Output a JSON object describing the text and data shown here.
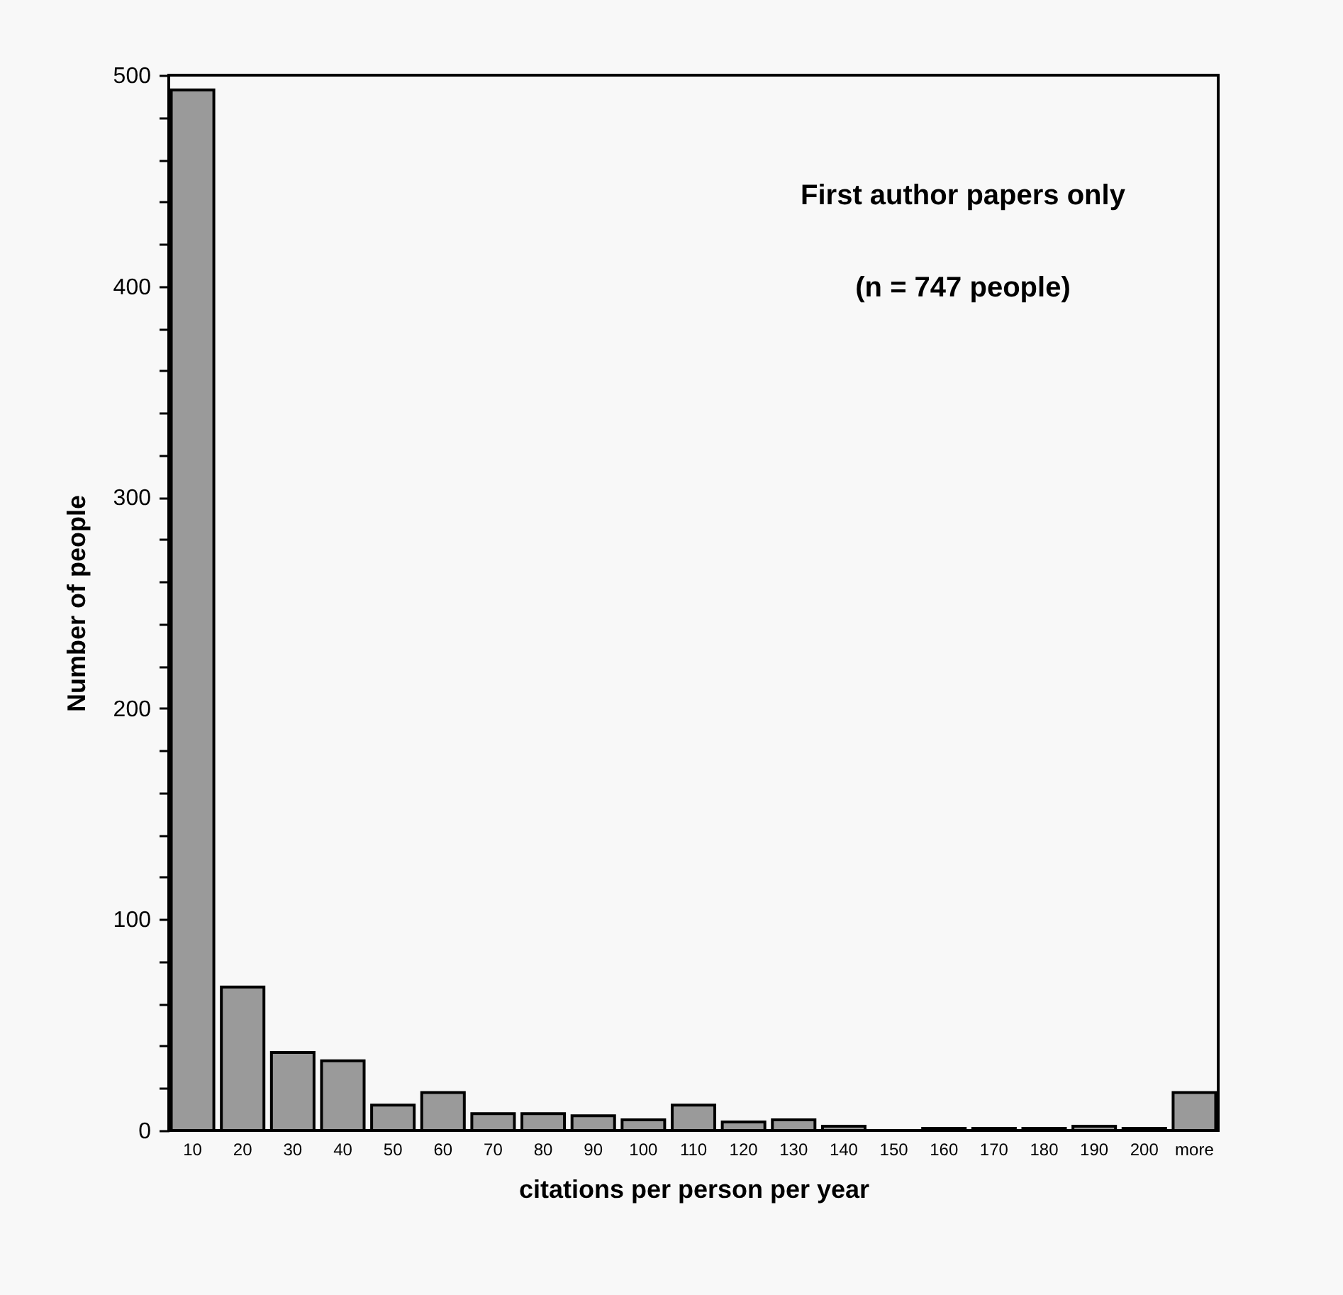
{
  "chart_data": {
    "type": "bar",
    "xlabel": "citations per person per year",
    "ylabel": "Number of people",
    "annotations": [
      "First author papers only",
      "(n = 747 people)"
    ],
    "categories": [
      "10",
      "20",
      "30",
      "40",
      "50",
      "60",
      "70",
      "80",
      "90",
      "100",
      "110",
      "120",
      "130",
      "140",
      "150",
      "160",
      "170",
      "180",
      "190",
      "200",
      "more"
    ],
    "values": [
      493,
      68,
      37,
      33,
      12,
      18,
      8,
      8,
      7,
      5,
      12,
      4,
      5,
      2,
      0,
      1,
      1,
      1,
      2,
      1,
      18
    ],
    "color": "#9a9a9a",
    "ylim": [
      0,
      500
    ],
    "yticks": [
      0,
      {
        "value": 20,
        "label": null
      },
      {
        "value": 40,
        "label": null
      },
      {
        "value": 60,
        "label": null
      },
      {
        "value": 80,
        "label": null
      },
      100,
      {
        "value": 120,
        "label": null
      },
      {
        "value": 140,
        "label": null
      },
      {
        "value": 160,
        "label": null
      },
      {
        "value": 180,
        "label": null
      },
      200,
      {
        "value": 220,
        "label": null
      },
      {
        "value": 240,
        "label": null
      },
      {
        "value": 260,
        "label": null
      },
      {
        "value": 280,
        "label": null
      },
      300,
      {
        "value": 320,
        "label": null
      },
      {
        "value": 340,
        "label": null
      },
      {
        "value": 360,
        "label": null
      },
      {
        "value": 380,
        "label": null
      },
      400,
      {
        "value": 420,
        "label": null
      },
      {
        "value": 440,
        "label": null
      },
      {
        "value": 460,
        "label": null
      },
      {
        "value": 480,
        "label": null
      },
      500
    ],
    "grid": false
  }
}
